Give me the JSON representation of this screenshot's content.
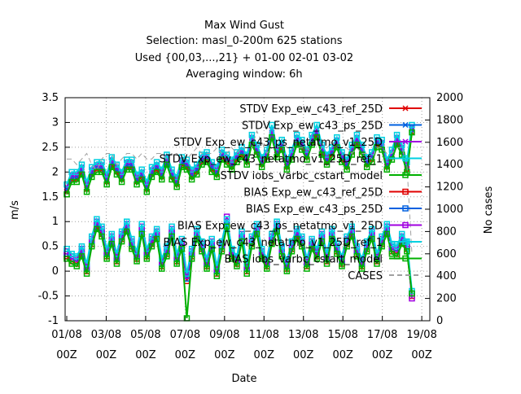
{
  "chart_data": {
    "type": "line",
    "title": "Max Wind Gust",
    "subtitle_lines": [
      "Selection: masl_0-200m    625 stations",
      "Used {00,03,...,21} + 01-00 02-01 03-02",
      "Averaging window:  6h"
    ],
    "xlabel": "Date",
    "ylabel": "m/s",
    "y2label": "No cases",
    "ylim": [
      -1,
      3.5
    ],
    "y2lim": [
      0,
      2000
    ],
    "yticks": [
      "3.5",
      "3",
      "2.5",
      "2",
      "1.5",
      "1",
      "0.5",
      "0",
      "-0.5",
      "-1"
    ],
    "y2ticks": [
      "2000",
      "1800",
      "1600",
      "1400",
      "1200",
      "1000",
      "800",
      "600",
      "400",
      "200",
      "0"
    ],
    "xticks": [
      {
        "date": "01/08",
        "hour": "00Z"
      },
      {
        "date": "03/08",
        "hour": "00Z"
      },
      {
        "date": "05/08",
        "hour": "00Z"
      },
      {
        "date": "07/08",
        "hour": "00Z"
      },
      {
        "date": "09/08",
        "hour": "00Z"
      },
      {
        "date": "11/08",
        "hour": "00Z"
      },
      {
        "date": "13/08",
        "hour": "00Z"
      },
      {
        "date": "15/08",
        "hour": "00Z"
      },
      {
        "date": "17/08",
        "hour": "00Z"
      },
      {
        "date": "19/08",
        "hour": "00Z"
      }
    ],
    "x": [
      "01/08 00Z",
      "01/08 06Z",
      "01/08 12Z",
      "01/08 18Z",
      "02/08 00Z",
      "02/08 06Z",
      "02/08 12Z",
      "02/08 18Z",
      "03/08 00Z",
      "03/08 06Z",
      "03/08 12Z",
      "03/08 18Z",
      "04/08 00Z",
      "04/08 06Z",
      "04/08 12Z",
      "04/08 18Z",
      "05/08 00Z",
      "05/08 06Z",
      "05/08 12Z",
      "05/08 18Z",
      "06/08 00Z",
      "06/08 06Z",
      "06/08 12Z",
      "06/08 18Z",
      "07/08 00Z",
      "07/08 06Z",
      "07/08 12Z",
      "07/08 18Z",
      "08/08 00Z",
      "08/08 06Z",
      "08/08 12Z",
      "08/08 18Z",
      "09/08 00Z",
      "09/08 06Z",
      "09/08 12Z",
      "09/08 18Z",
      "10/08 00Z",
      "10/08 06Z",
      "10/08 12Z",
      "10/08 18Z",
      "11/08 00Z",
      "11/08 06Z",
      "11/08 12Z",
      "11/08 18Z",
      "12/08 00Z",
      "12/08 06Z",
      "12/08 12Z",
      "12/08 18Z",
      "13/08 00Z",
      "13/08 06Z",
      "13/08 12Z",
      "13/08 18Z",
      "14/08 00Z",
      "14/08 06Z",
      "14/08 12Z",
      "14/08 18Z",
      "15/08 00Z",
      "15/08 06Z",
      "15/08 12Z",
      "15/08 18Z",
      "16/08 00Z",
      "16/08 06Z",
      "16/08 12Z",
      "16/08 18Z",
      "17/08 00Z",
      "17/08 06Z",
      "17/08 12Z",
      "17/08 18Z",
      "18/08 00Z",
      "18/08 06Z"
    ],
    "series": [
      {
        "name": "STDV Exp_ew_c43_ref_25D",
        "axis": "y",
        "color": "#e00000",
        "marker": "x",
        "values": [
          1.6,
          1.85,
          1.85,
          2.0,
          1.65,
          1.95,
          2.05,
          2.05,
          1.8,
          2.15,
          2.0,
          1.85,
          2.1,
          2.1,
          1.8,
          1.9,
          1.65,
          1.95,
          2.05,
          1.9,
          2.2,
          1.9,
          1.75,
          2.15,
          2.1,
          1.9,
          2.0,
          2.2,
          2.25,
          2.05,
          1.95,
          2.3,
          2.2,
          2.1,
          2.25,
          2.35,
          2.2,
          2.6,
          2.4,
          2.15,
          2.3,
          2.75,
          2.35,
          2.5,
          2.1,
          2.3,
          2.6,
          2.5,
          2.3,
          2.6,
          2.75,
          2.4,
          2.2,
          2.35,
          2.55,
          2.25,
          2.1,
          2.4,
          2.6,
          2.4,
          2.15,
          2.25,
          2.55,
          2.5,
          2.1,
          2.3,
          2.6,
          2.4,
          2.05,
          2.8
        ]
      },
      {
        "name": "STDV Exp_ew_c43_ps_25D",
        "axis": "y",
        "color": "#0060e0",
        "marker": "x",
        "values": [
          1.65,
          1.9,
          1.9,
          2.05,
          1.7,
          2.0,
          2.1,
          2.1,
          1.85,
          2.2,
          2.05,
          1.9,
          2.15,
          2.15,
          1.85,
          1.95,
          1.7,
          2.0,
          2.1,
          1.95,
          2.25,
          1.95,
          1.8,
          2.2,
          2.15,
          1.95,
          2.05,
          2.25,
          2.3,
          2.1,
          2.0,
          2.35,
          2.25,
          2.15,
          2.3,
          2.4,
          2.25,
          2.65,
          2.45,
          2.2,
          2.35,
          2.8,
          2.4,
          2.55,
          2.15,
          2.35,
          2.65,
          2.55,
          2.35,
          2.65,
          2.8,
          2.45,
          2.25,
          2.4,
          2.6,
          2.3,
          2.15,
          2.45,
          2.65,
          2.45,
          2.2,
          2.3,
          2.6,
          2.55,
          2.15,
          2.35,
          2.65,
          2.45,
          2.1,
          2.85
        ]
      },
      {
        "name": "STDV Exp_ew_c43_ps_netatmo_v1_25D",
        "axis": "y",
        "color": "#a000e0",
        "marker": "x",
        "values": [
          1.7,
          1.95,
          1.95,
          2.1,
          1.75,
          2.05,
          2.15,
          2.15,
          1.9,
          2.25,
          2.1,
          1.95,
          2.2,
          2.2,
          1.9,
          2.0,
          1.75,
          2.05,
          2.15,
          2.0,
          2.3,
          2.0,
          1.85,
          2.25,
          2.2,
          2.0,
          2.1,
          2.3,
          2.35,
          2.15,
          2.05,
          2.4,
          2.3,
          2.2,
          2.35,
          2.45,
          2.3,
          2.7,
          2.5,
          2.25,
          2.4,
          2.85,
          2.45,
          2.6,
          2.2,
          2.4,
          2.7,
          2.6,
          2.4,
          2.7,
          2.85,
          2.5,
          2.3,
          2.45,
          2.65,
          2.35,
          2.2,
          2.5,
          2.7,
          2.5,
          2.25,
          2.35,
          2.65,
          2.6,
          2.2,
          2.4,
          2.7,
          2.5,
          2.15,
          2.9
        ]
      },
      {
        "name": "STDV Exp_ew_c43_netatmo_v1_25D_ref_1",
        "axis": "y",
        "color": "#00d0e0",
        "marker": "box",
        "values": [
          1.75,
          2.0,
          2.0,
          2.15,
          1.8,
          2.1,
          2.2,
          2.2,
          1.95,
          2.3,
          2.15,
          2.0,
          2.25,
          2.25,
          1.95,
          2.05,
          1.8,
          2.1,
          2.2,
          2.05,
          2.35,
          2.05,
          1.9,
          2.3,
          2.25,
          2.05,
          2.15,
          2.35,
          2.4,
          2.2,
          2.1,
          2.45,
          2.35,
          2.25,
          2.4,
          2.5,
          2.35,
          2.75,
          2.55,
          2.3,
          2.45,
          2.95,
          2.5,
          2.65,
          2.25,
          2.45,
          2.75,
          2.65,
          2.45,
          2.75,
          2.95,
          2.55,
          2.35,
          2.5,
          2.7,
          2.4,
          2.25,
          2.55,
          2.75,
          2.55,
          2.3,
          2.4,
          2.7,
          2.65,
          2.25,
          2.45,
          2.75,
          2.55,
          2.2,
          2.95
        ]
      },
      {
        "name": "STDV iobs_varbc_cstart_model",
        "axis": "y",
        "color": "#00b000",
        "marker": "box",
        "values": [
          1.55,
          1.8,
          1.8,
          1.95,
          1.6,
          1.9,
          2.0,
          2.0,
          1.75,
          2.1,
          1.95,
          1.8,
          2.05,
          2.05,
          1.75,
          1.85,
          1.6,
          1.9,
          2.0,
          1.85,
          2.15,
          1.85,
          1.7,
          2.1,
          2.05,
          1.85,
          1.95,
          2.15,
          2.2,
          2.0,
          1.9,
          2.25,
          2.15,
          2.05,
          2.2,
          2.3,
          2.15,
          2.55,
          2.35,
          2.1,
          2.25,
          2.7,
          2.3,
          2.45,
          2.05,
          2.25,
          2.55,
          2.45,
          2.25,
          2.55,
          2.7,
          2.35,
          2.15,
          2.3,
          2.5,
          2.2,
          2.05,
          2.35,
          2.55,
          2.35,
          2.1,
          2.2,
          2.5,
          2.45,
          2.05,
          2.25,
          2.55,
          2.35,
          2.0,
          2.8
        ]
      },
      {
        "name": "BIAS Exp_ew_c43_ref_25D",
        "axis": "y",
        "color": "#e00000",
        "marker": "box",
        "values": [
          0.3,
          0.2,
          0.15,
          0.35,
          0.0,
          0.55,
          0.9,
          0.75,
          0.3,
          0.6,
          0.2,
          0.65,
          0.85,
          0.5,
          0.25,
          0.8,
          0.3,
          0.55,
          0.7,
          0.1,
          0.35,
          0.75,
          0.2,
          0.5,
          -0.2,
          0.3,
          0.7,
          0.45,
          0.1,
          0.5,
          -0.05,
          0.45,
          0.95,
          0.3,
          0.15,
          0.65,
          0.0,
          0.55,
          0.8,
          0.3,
          0.1,
          0.6,
          0.85,
          0.35,
          0.05,
          0.45,
          0.7,
          0.55,
          0.1,
          0.5,
          0.3,
          0.65,
          0.2,
          0.7,
          0.4,
          0.15,
          0.55,
          0.75,
          0.35,
          0.1,
          0.45,
          0.7,
          0.2,
          0.55,
          0.8,
          0.4,
          0.35,
          0.6,
          0.45,
          -0.5
        ]
      },
      {
        "name": "BIAS Exp_ew_c43_ps_25D",
        "axis": "y",
        "color": "#0060e0",
        "marker": "box",
        "values": [
          0.35,
          0.25,
          0.2,
          0.4,
          0.05,
          0.6,
          0.95,
          0.8,
          0.35,
          0.65,
          0.25,
          0.7,
          0.9,
          0.55,
          0.3,
          0.85,
          0.35,
          0.6,
          0.75,
          0.15,
          0.4,
          0.8,
          0.25,
          0.55,
          -0.15,
          0.35,
          0.75,
          0.5,
          0.15,
          0.55,
          0.0,
          0.5,
          1.0,
          0.35,
          0.2,
          0.7,
          0.05,
          0.6,
          0.85,
          0.35,
          0.15,
          0.65,
          0.9,
          0.4,
          0.1,
          0.5,
          0.75,
          0.6,
          0.15,
          0.55,
          0.35,
          0.7,
          0.25,
          0.75,
          0.45,
          0.2,
          0.6,
          0.8,
          0.4,
          0.15,
          0.5,
          0.75,
          0.25,
          0.6,
          0.85,
          0.45,
          0.4,
          0.65,
          0.5,
          -0.45
        ]
      },
      {
        "name": "BIAS Exp_ew_c43_ps_netatmo_v1_25D",
        "axis": "y",
        "color": "#a000e0",
        "marker": "box",
        "values": [
          0.4,
          0.3,
          0.25,
          0.45,
          0.1,
          0.65,
          1.0,
          0.85,
          0.4,
          0.7,
          0.3,
          0.75,
          0.95,
          0.6,
          0.35,
          0.9,
          0.4,
          0.65,
          0.8,
          0.2,
          0.45,
          0.85,
          0.3,
          0.6,
          -0.1,
          0.4,
          0.8,
          0.55,
          0.2,
          0.6,
          0.05,
          0.55,
          1.1,
          0.4,
          0.25,
          0.75,
          0.1,
          0.65,
          0.9,
          0.4,
          0.2,
          0.7,
          0.95,
          0.45,
          0.15,
          0.55,
          0.8,
          0.65,
          0.2,
          0.6,
          0.4,
          0.75,
          0.3,
          0.8,
          0.5,
          0.25,
          0.65,
          0.85,
          0.45,
          0.2,
          0.55,
          0.8,
          0.3,
          0.65,
          0.9,
          0.5,
          0.45,
          0.7,
          0.55,
          -0.55
        ]
      },
      {
        "name": "BIAS Exp_ew_c43_netatmo_v1_25D_ref_1",
        "axis": "y",
        "color": "#00d0e0",
        "marker": "box",
        "values": [
          0.45,
          0.35,
          0.3,
          0.5,
          0.15,
          0.7,
          1.05,
          0.9,
          0.45,
          0.75,
          0.35,
          0.8,
          1.0,
          0.65,
          0.4,
          0.95,
          0.45,
          0.7,
          0.85,
          0.25,
          0.5,
          0.9,
          0.35,
          0.65,
          -0.05,
          0.45,
          0.85,
          0.6,
          0.25,
          0.65,
          0.1,
          0.6,
          1.05,
          0.45,
          0.3,
          0.8,
          0.15,
          0.7,
          0.95,
          0.45,
          0.25,
          0.75,
          1.0,
          0.5,
          0.2,
          0.6,
          0.85,
          0.7,
          0.25,
          0.65,
          0.45,
          0.8,
          0.35,
          0.85,
          0.55,
          0.3,
          0.7,
          0.9,
          0.5,
          0.25,
          0.6,
          0.85,
          0.35,
          0.7,
          0.95,
          0.55,
          0.5,
          0.75,
          0.6,
          -0.4
        ]
      },
      {
        "name": "BIAS iobs_varbc_cstart_model",
        "axis": "y",
        "color": "#00b000",
        "marker": "box",
        "values": [
          0.25,
          0.15,
          0.1,
          0.3,
          -0.05,
          0.5,
          0.85,
          0.7,
          0.25,
          0.55,
          0.15,
          0.6,
          0.8,
          0.45,
          0.2,
          0.75,
          0.25,
          0.5,
          0.65,
          0.05,
          0.3,
          0.7,
          0.15,
          0.45,
          -0.95,
          0.25,
          0.65,
          0.4,
          0.05,
          0.45,
          -0.1,
          0.4,
          0.9,
          0.25,
          0.1,
          0.6,
          -0.05,
          0.5,
          0.75,
          0.25,
          0.05,
          0.55,
          0.8,
          0.3,
          0.0,
          0.4,
          0.65,
          0.5,
          0.05,
          0.45,
          0.25,
          0.6,
          0.15,
          0.65,
          0.35,
          0.1,
          0.5,
          0.7,
          0.3,
          0.05,
          0.4,
          0.65,
          0.15,
          0.5,
          0.75,
          0.35,
          0.3,
          0.55,
          0.4,
          -0.45
        ]
      },
      {
        "name": "CASES",
        "axis": "y2",
        "color": "#a0a0a0",
        "marker": "none",
        "values": [
          1450,
          1450,
          1400,
          1450,
          1500,
          1400,
          1350,
          1450,
          1500,
          1500,
          1400,
          1450,
          1500,
          1500,
          1450,
          1500,
          1450,
          1450,
          1500,
          1500,
          1450,
          1500,
          1500,
          1450,
          1450,
          1500,
          1550,
          1500,
          1500,
          1500,
          1550,
          1500,
          1500,
          1550,
          1500,
          1550,
          1550,
          1550,
          1700,
          1600,
          1500,
          1550,
          1550,
          1600,
          1550,
          1550,
          1550,
          1550,
          1550,
          1500,
          1500,
          1550,
          1550,
          1600,
          1550,
          1550,
          1550,
          1500,
          1550,
          1500,
          1500,
          1450,
          1550,
          1550,
          1500,
          1500,
          1550,
          1550,
          1400,
          600
        ]
      }
    ],
    "legend": "top-right",
    "grid": true
  }
}
